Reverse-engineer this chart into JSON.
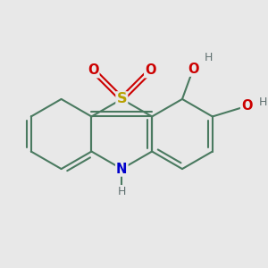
{
  "bg_color": "#e8e8e8",
  "bond_color": "#4a7a60",
  "bond_width": 1.5,
  "S_color": "#b8a000",
  "N_color": "#0000cc",
  "O_color": "#cc0000",
  "H_color": "#607070",
  "font_size": 10.5,
  "figsize": [
    3.0,
    3.0
  ],
  "dpi": 100,
  "xlim": [
    -1.55,
    1.55
  ],
  "ylim": [
    -1.1,
    1.1
  ]
}
